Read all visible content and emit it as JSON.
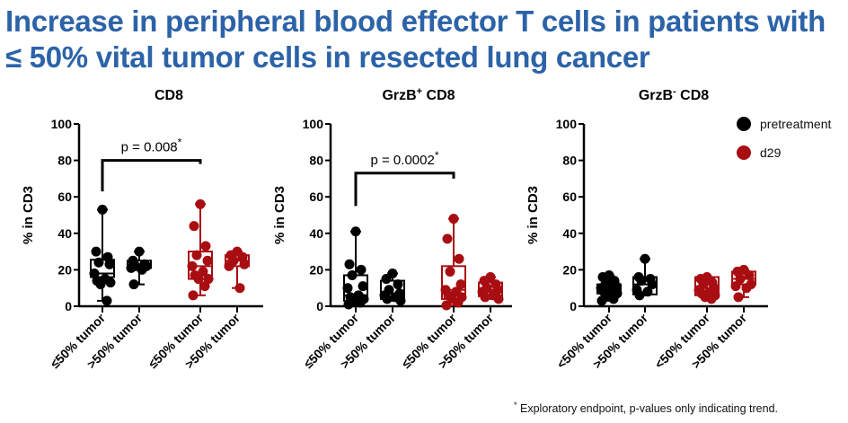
{
  "title": {
    "line1": "Increase in peripheral blood effector T cells in patients with",
    "line2": "≤ 50% vital tumor cells in resected lung cancer"
  },
  "footnote": {
    "marker": "*",
    "text": " Exploratory endpoint, p-values only indicating trend."
  },
  "legend": [
    {
      "label": "pretreatment",
      "color": "#000000"
    },
    {
      "label": "d29",
      "color": "#a80d12"
    }
  ],
  "chart_data": [
    {
      "type": "box",
      "title": "CD8",
      "title_sup": "",
      "ylabel": "% in CD3",
      "ylim": [
        0,
        100
      ],
      "yticks": [
        "0",
        "20",
        "40",
        "60",
        "80",
        "100"
      ],
      "categories": [
        "≤50% tumor",
        ">50% tumor",
        "≤50% tumor",
        ">50% tumor"
      ],
      "annotation": {
        "text": "p = 0.008",
        "star": "*",
        "from": 0,
        "to": 2
      },
      "groups": [
        {
          "series": "pretreatment",
          "min": 3,
          "q1": 16,
          "median": 18,
          "q3": 25.5,
          "max": 53,
          "points": [
            53,
            30,
            27,
            24,
            23,
            18,
            15,
            14,
            13,
            12,
            3
          ]
        },
        {
          "series": "pretreatment",
          "min": 12,
          "q1": 21,
          "median": 22.5,
          "q3": 25,
          "max": 30,
          "points": [
            30,
            25,
            23,
            22,
            22,
            21,
            20,
            12
          ]
        },
        {
          "series": "d29",
          "min": 6,
          "q1": 15,
          "median": 22,
          "q3": 30,
          "max": 56,
          "points": [
            56,
            44,
            33,
            28,
            25,
            22,
            19,
            17,
            15,
            15,
            11,
            6
          ]
        },
        {
          "series": "d29",
          "min": 10,
          "q1": 22,
          "median": 25,
          "q3": 28,
          "max": 30,
          "points": [
            30,
            28,
            27,
            25,
            23,
            22,
            10
          ]
        }
      ]
    },
    {
      "type": "box",
      "title": "GrzB",
      "title_sup": "+",
      "title_suffix": " CD8",
      "ylabel": "% in CD3",
      "ylim": [
        0,
        100
      ],
      "yticks": [
        "0",
        "20",
        "40",
        "60",
        "80",
        "100"
      ],
      "categories": [
        "≤50% tumor",
        ">50% tumor",
        "≤50% tumor",
        ">50% tumor"
      ],
      "annotation": {
        "text": "p = 0.0002",
        "star": "*",
        "from": 0,
        "to": 2
      },
      "groups": [
        {
          "series": "pretreatment",
          "min": 0.5,
          "q1": 3,
          "median": 6,
          "q3": 17,
          "max": 41,
          "points": [
            41,
            23,
            20,
            17,
            11,
            10,
            6,
            5,
            4,
            3,
            2,
            1
          ]
        },
        {
          "series": "pretreatment",
          "min": 3,
          "q1": 4,
          "median": 7,
          "q3": 14,
          "max": 18,
          "points": [
            18,
            15,
            12,
            9,
            7,
            6,
            5,
            4,
            3
          ]
        },
        {
          "series": "d29",
          "min": 0.5,
          "q1": 4,
          "median": 9,
          "q3": 22,
          "max": 48,
          "points": [
            48,
            37,
            26,
            19,
            12,
            9,
            8,
            6,
            5,
            4,
            2,
            0.5
          ]
        },
        {
          "series": "d29",
          "min": 4,
          "q1": 5.5,
          "median": 9,
          "q3": 13,
          "max": 16,
          "points": [
            16,
            14,
            12,
            10,
            9,
            8,
            6,
            5,
            4
          ]
        }
      ]
    },
    {
      "type": "box",
      "title": "GrzB",
      "title_sup": "-",
      "title_suffix": " CD8",
      "ylabel": "% in CD3",
      "ylim": [
        0,
        100
      ],
      "yticks": [
        "0",
        "20",
        "40",
        "60",
        "80",
        "100"
      ],
      "categories": [
        "<50% tumor",
        ">50% tumor",
        "<50% tumor",
        ">50% tumor"
      ],
      "groups": [
        {
          "series": "pretreatment",
          "min": 3,
          "q1": 7,
          "median": 10,
          "q3": 12,
          "max": 17,
          "points": [
            17,
            16,
            14,
            12,
            11,
            10,
            9,
            8,
            7,
            6,
            4,
            3
          ]
        },
        {
          "series": "pretreatment",
          "min": 6,
          "q1": 6.5,
          "median": 12,
          "q3": 16,
          "max": 26,
          "points": [
            26,
            16,
            15,
            14,
            12,
            9,
            8,
            6
          ]
        },
        {
          "series": "d29",
          "min": 4,
          "q1": 6,
          "median": 10,
          "q3": 16,
          "max": 16,
          "points": [
            16,
            15,
            13,
            12,
            10,
            9,
            8,
            7,
            6,
            5,
            4
          ]
        },
        {
          "series": "d29",
          "min": 5,
          "q1": 12,
          "median": 15,
          "q3": 19,
          "max": 20,
          "points": [
            20,
            19,
            17,
            15,
            12,
            11,
            10,
            5
          ]
        }
      ]
    }
  ]
}
